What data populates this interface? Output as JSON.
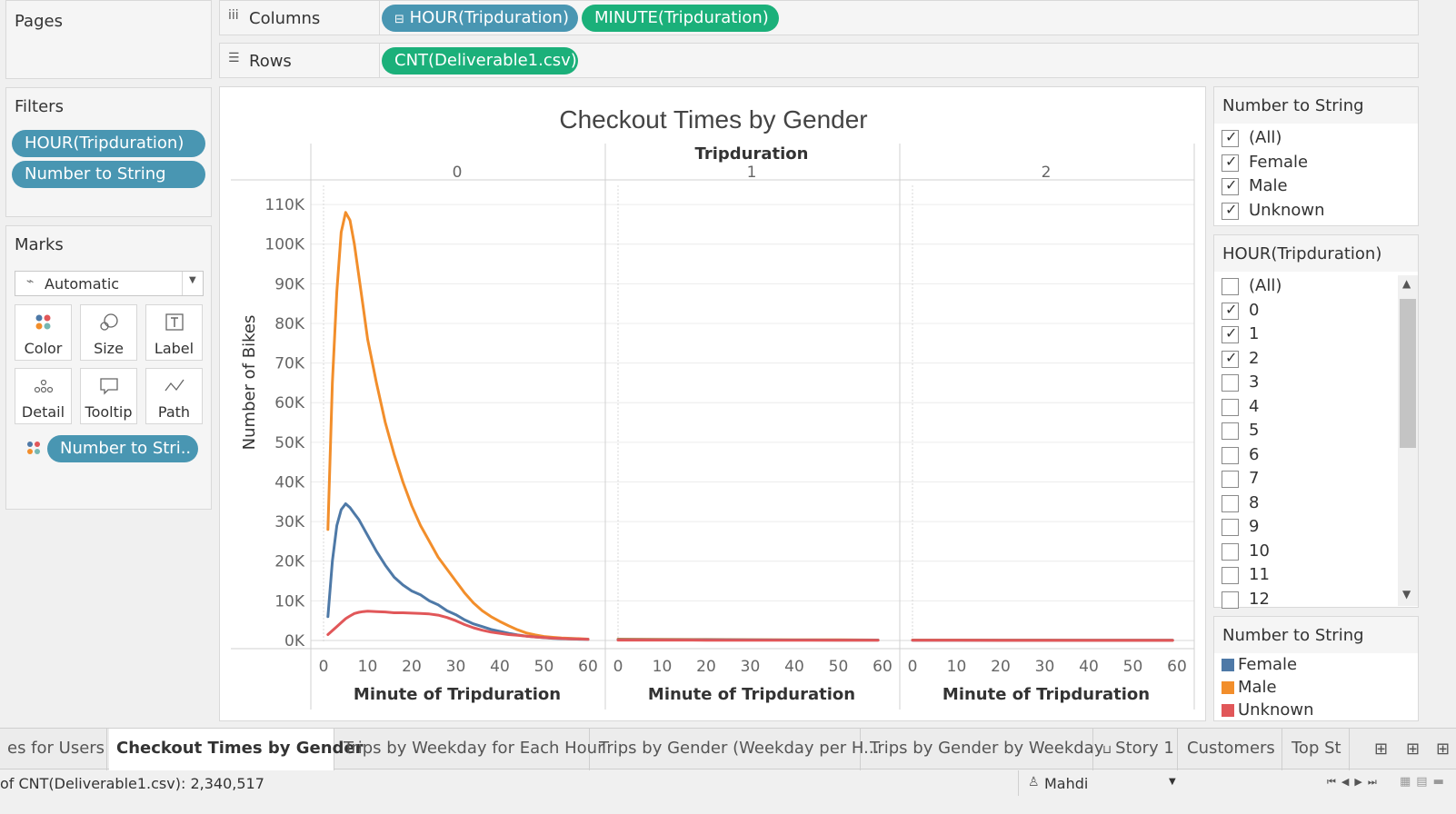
{
  "left": {
    "pages_title": "Pages",
    "filters_title": "Filters",
    "filters": [
      "HOUR(Tripduration)",
      "Number to String"
    ],
    "marks_title": "Marks",
    "mark_type": "Automatic",
    "mark_buttons": [
      "Color",
      "Size",
      "Label",
      "Detail",
      "Tooltip",
      "Path"
    ],
    "color_pill": "Number to Stri.."
  },
  "shelves": {
    "columns_label": "Columns",
    "columns": [
      "HOUR(Tripduration)",
      "MINUTE(Tripduration)"
    ],
    "rows_label": "Rows",
    "rows": [
      "CNT(Deliverable1.csv)"
    ]
  },
  "chart": {
    "title": "Checkout Times by Gender",
    "pane_header": "Tripduration",
    "panes": [
      "0",
      "1",
      "2"
    ],
    "ylabel": "Number of Bikes",
    "xlabel": "Minute of Tripduration",
    "yticks": [
      "0K",
      "10K",
      "20K",
      "30K",
      "40K",
      "50K",
      "60K",
      "70K",
      "80K",
      "90K",
      "100K",
      "110K"
    ],
    "xticks": [
      "0",
      "10",
      "20",
      "30",
      "40",
      "50",
      "60"
    ]
  },
  "chart_data": {
    "type": "line",
    "title": "Checkout Times by Gender",
    "xlabel": "Minute of Tripduration",
    "ylabel": "Number of Bikes",
    "facet": "Tripduration",
    "facets": [
      "0",
      "1",
      "2"
    ],
    "xlim": [
      0,
      60
    ],
    "ylim": [
      0,
      113000
    ],
    "grid": true,
    "legend": "right",
    "colors": {
      "Female": "#4e79a7",
      "Male": "#f28e2b",
      "Unknown": "#e15759"
    },
    "panels": [
      {
        "facet": "0",
        "x": [
          1,
          2,
          3,
          4,
          5,
          6,
          7,
          8,
          9,
          10,
          12,
          14,
          16,
          18,
          20,
          22,
          24,
          26,
          28,
          30,
          32,
          34,
          36,
          38,
          40,
          42,
          44,
          46,
          48,
          50,
          52,
          54,
          56,
          58,
          60
        ],
        "series": [
          {
            "name": "Male",
            "values": [
              28000,
              65000,
              88000,
              103000,
              108000,
              106000,
              100000,
              92000,
              84000,
              76000,
              65000,
              55000,
              47000,
              40000,
              34000,
              29000,
              25000,
              21000,
              18000,
              15000,
              12000,
              9500,
              7500,
              6000,
              4800,
              3700,
              2700,
              1900,
              1400,
              1000,
              800,
              650,
              550,
              450,
              350
            ]
          },
          {
            "name": "Female",
            "values": [
              6000,
              20000,
              29000,
              33000,
              34500,
              33500,
              32000,
              30500,
              28500,
              26500,
              22500,
              19000,
              16000,
              14000,
              12500,
              11500,
              10000,
              9000,
              7500,
              6500,
              5200,
              4200,
              3500,
              2800,
              2300,
              1800,
              1400,
              1100,
              900,
              700,
              550,
              450,
              380,
              320,
              280
            ]
          },
          {
            "name": "Unknown",
            "values": [
              1500,
              2500,
              3500,
              4500,
              5500,
              6200,
              6800,
              7100,
              7300,
              7400,
              7300,
              7200,
              7000,
              7000,
              6900,
              6800,
              6700,
              6400,
              5800,
              5000,
              4000,
              3200,
              2600,
              2100,
              1800,
              1500,
              1300,
              1100,
              900,
              750,
              600,
              500,
              420,
              360,
              300
            ]
          }
        ]
      },
      {
        "facet": "1",
        "x": [
          0,
          10,
          20,
          30,
          40,
          50,
          59
        ],
        "series": [
          {
            "name": "Male",
            "values": [
              350,
              300,
              250,
              200,
              180,
              150,
              120
            ]
          },
          {
            "name": "Female",
            "values": [
              200,
              180,
              150,
              130,
              110,
              100,
              90
            ]
          },
          {
            "name": "Unknown",
            "values": [
              100,
              90,
              80,
              70,
              60,
              50,
              40
            ]
          }
        ]
      },
      {
        "facet": "2",
        "x": [
          0,
          10,
          20,
          30,
          40,
          50,
          59
        ],
        "series": [
          {
            "name": "Male",
            "values": [
              120,
              110,
              100,
              90,
              80,
              70,
              60
            ]
          },
          {
            "name": "Female",
            "values": [
              80,
              70,
              65,
              60,
              55,
              50,
              45
            ]
          },
          {
            "name": "Unknown",
            "values": [
              40,
              35,
              30,
              28,
              25,
              22,
              20
            ]
          }
        ]
      }
    ]
  },
  "right": {
    "nts_filter_title": "Number to String",
    "nts_filter_items": [
      {
        "label": "(All)",
        "checked": true
      },
      {
        "label": "Female",
        "checked": true
      },
      {
        "label": "Male",
        "checked": true
      },
      {
        "label": "Unknown",
        "checked": true
      }
    ],
    "hour_filter_title": "HOUR(Tripduration)",
    "hour_filter_items": [
      {
        "label": "(All)",
        "checked": false
      },
      {
        "label": "0",
        "checked": true
      },
      {
        "label": "1",
        "checked": true
      },
      {
        "label": "2",
        "checked": true
      },
      {
        "label": "3",
        "checked": false
      },
      {
        "label": "4",
        "checked": false
      },
      {
        "label": "5",
        "checked": false
      },
      {
        "label": "6",
        "checked": false
      },
      {
        "label": "7",
        "checked": false
      },
      {
        "label": "8",
        "checked": false
      },
      {
        "label": "9",
        "checked": false
      },
      {
        "label": "10",
        "checked": false
      },
      {
        "label": "11",
        "checked": false
      },
      {
        "label": "12",
        "checked": false
      }
    ],
    "legend_title": "Number to String",
    "legend": [
      {
        "label": "Female",
        "color": "#4e79a7"
      },
      {
        "label": "Male",
        "color": "#f28e2b"
      },
      {
        "label": "Unknown",
        "color": "#e15759"
      }
    ]
  },
  "tabs": {
    "items": [
      "es for Users",
      "Checkout Times by Gender",
      "Trips by Weekday for Each Hour",
      "Trips by Gender (Weekday per H...",
      "Trips by Gender by Weekday",
      "Story 1",
      "Customers",
      "Top St"
    ],
    "active_index": 1
  },
  "status": {
    "summary": "of CNT(Deliverable1.csv): 2,340,517",
    "user": "Mahdi"
  }
}
